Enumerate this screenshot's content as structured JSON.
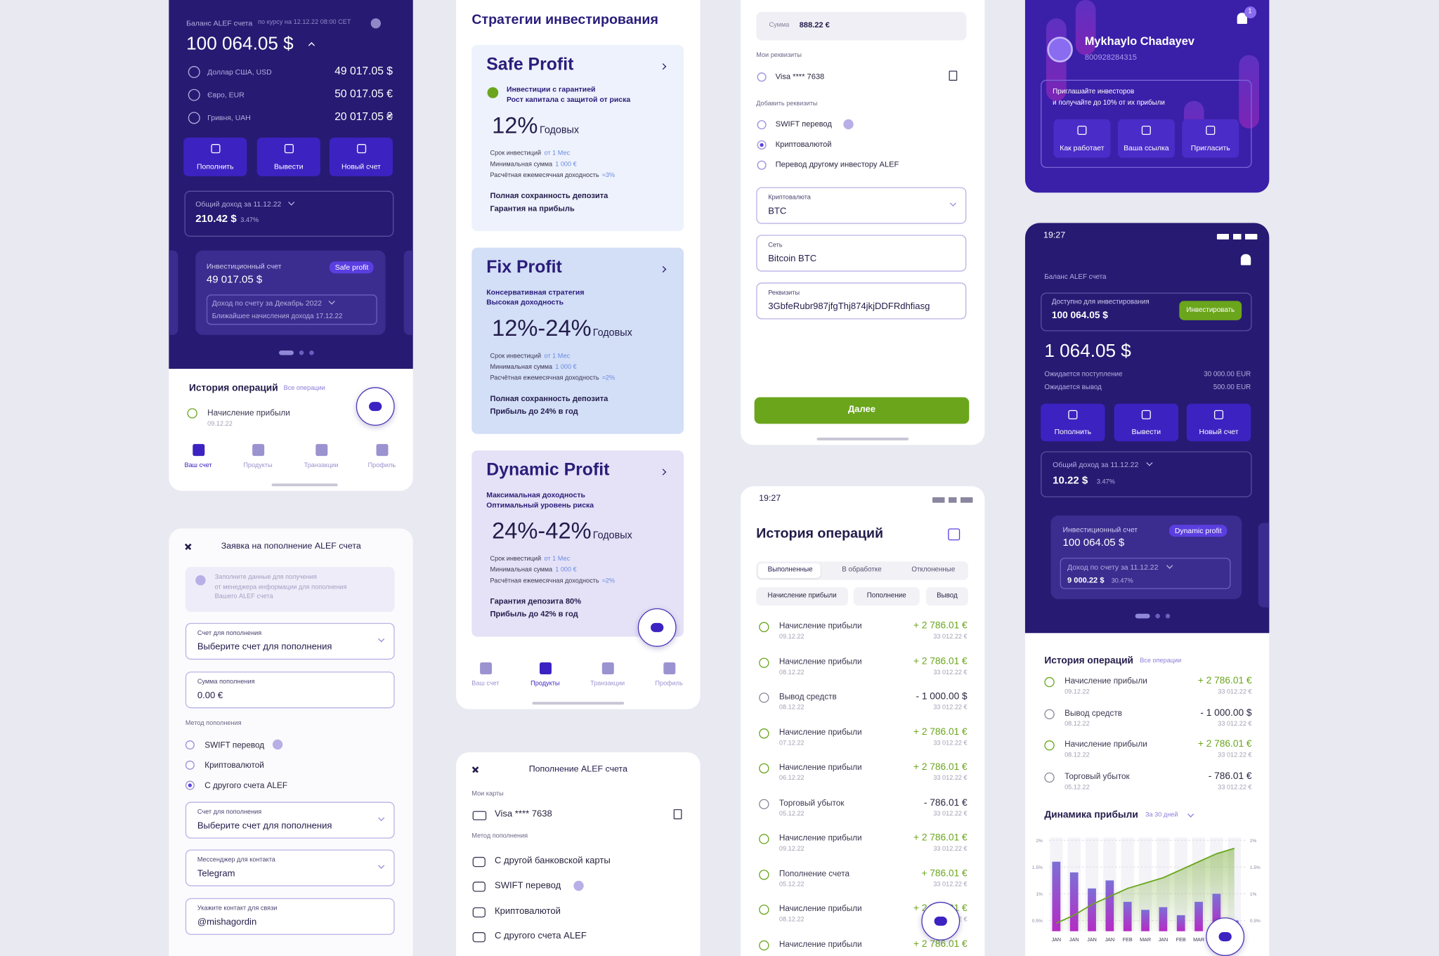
{
  "s1": {
    "balance_label": "Баланс ALEF счета",
    "rate_note": "по курсу на 12.12.22 08:00 CET",
    "total": "100 064.05 $",
    "currencies": [
      {
        "name": "Доллар США, USD",
        "amount": "49 017.05 $"
      },
      {
        "name": "Євро, EUR",
        "amount": "50 017.05 €"
      },
      {
        "name": "Гривня, UAH",
        "amount": "20 017.05 ₴"
      }
    ],
    "actions": [
      "Пополнить",
      "Вывести",
      "Новый счет"
    ],
    "income_label": "Общий доход за 11.12.22",
    "income": "210.42 $",
    "income_pct": "3.47%",
    "card": {
      "label": "Инвестиционный счет",
      "amount": "49 017.05 $",
      "badge": "Safe profit",
      "period": "Доход по счету за Декабрь 2022",
      "next": "Ближайшее начисления дохода 17.12.22"
    },
    "history_title": "История операций",
    "history_link": "Все операции",
    "operation": {
      "name": "Начисление прибыли",
      "date": "09.12.22"
    },
    "nav": [
      "Ваш счет",
      "Продукты",
      "Транзакции",
      "Профиль"
    ]
  },
  "s2": {
    "title": "Заявка на пополнение ALEF счета",
    "info": [
      "Заполните данные для получения",
      "от менеджера информации для пополнения",
      "Вашего ALEF счета"
    ],
    "fields": [
      {
        "label": "Счет для пополнения",
        "value": "Выберите счет для пополнения"
      },
      {
        "label": "Сумма пополнения",
        "value": "0.00 €"
      }
    ],
    "method_label": "Метод пополнения",
    "methods": [
      "SWIFT перевод",
      "Криптовалютой",
      "С другого счета ALEF"
    ],
    "fields2": [
      {
        "label": "Счет для пополнения",
        "value": "Выберите счет для пополнения"
      },
      {
        "label": "Мессенджер для контакта",
        "value": "Telegram"
      },
      {
        "label": "Укажите контакт для связи",
        "value": "@mishagordin"
      }
    ]
  },
  "s3": {
    "title": "Стратегии инвестирования",
    "period": "Годовых",
    "term_labels": [
      "Срок инвестиций",
      "Минимальная сумма",
      "Расчётная ежемесячная доходность"
    ],
    "strategies": [
      {
        "name": "Safe Profit",
        "desc": [
          "Инвестиции с гарантией",
          "Рост капитала с защитой от риска"
        ],
        "rate": "12%",
        "term_values": [
          "от 1 Мес",
          "1 000 €",
          "≈3%"
        ],
        "guarantee": [
          "Полная сохранность депозита",
          "Гарантия на прибыль"
        ]
      },
      {
        "name": "Fix Profit",
        "desc": [
          "Консервативная стратегия",
          "Высокая доходность"
        ],
        "rate": "12%-24%",
        "term_values": [
          "от 1 Мес",
          "1 000 €",
          "≈2%"
        ],
        "guarantee": [
          "Полная сохранность депозита",
          "Прибыль до 24% в год"
        ]
      },
      {
        "name": "Dynamic Profit",
        "desc": [
          "Максимальная доходность",
          "Оптимальный уровень риска"
        ],
        "rate": "24%-42%",
        "term_values": [
          "от 1 Мес",
          "1 000 €",
          "≈2%"
        ],
        "guarantee": [
          "Гарантия депозита 80%",
          "Прибыль до 42% в год"
        ]
      }
    ]
  },
  "s4": {
    "title": "Пополнение ALEF счета",
    "cards_label": "Мои карты",
    "card": "Visa **** 7638",
    "method_label": "Метод пополнения",
    "methods": [
      "С другой банковской карты",
      "SWIFT перевод",
      "Криптовалютой",
      "С другого счета ALEF"
    ]
  },
  "s5": {
    "amount_label": "Сумма",
    "amount": "888.22 €",
    "details_label": "Мои реквизиты",
    "card": "Visa **** 7638",
    "add_label": "Добавить реквизиты",
    "options": [
      "SWIFT перевод",
      "Криптовалютой",
      "Перевод другому инвестору ALEF"
    ],
    "fields": [
      {
        "label": "Криптовалюта",
        "value": "BTC"
      },
      {
        "label": "Сеть",
        "value": "Bitcoin BTC"
      },
      {
        "label": "Реквизиты",
        "value": "3GbfeRubr987jfgThj874jkjDDFRdhfiasg"
      }
    ],
    "button": "Далее"
  },
  "s6": {
    "time": "19:27",
    "title": "История операций",
    "tabs": [
      "Выполненные",
      "В обработке",
      "Отклоненные"
    ],
    "filters": [
      "Начисление прибыли",
      "Пополнение",
      "Вывод"
    ],
    "operations": [
      {
        "name": "Начисление прибыли",
        "date": "09.12.22",
        "amount": "+ 2 786.01 €",
        "balance": "33 012.22 €"
      },
      {
        "name": "Начисление прибыли",
        "date": "08.12.22",
        "amount": "+ 2 786.01 €",
        "balance": "33 012.22 €"
      },
      {
        "name": "Вывод средств",
        "date": "08.12.22",
        "amount": "- 1 000.00 $",
        "balance": "33 012.22 €"
      },
      {
        "name": "Начисление прибыли",
        "date": "07.12.22",
        "amount": "+ 2 786.01 €",
        "balance": "33 012.22 €"
      },
      {
        "name": "Начисление прибыли",
        "date": "06.12.22",
        "amount": "+ 2 786.01 €",
        "balance": "33 012.22 €"
      },
      {
        "name": "Торговый убыток",
        "date": "05.12.22",
        "amount": "- 786.01 €",
        "balance": "33 012.22 €"
      },
      {
        "name": "Начисление прибыли",
        "date": "09.12.22",
        "amount": "+ 2 786.01 €",
        "balance": "33 012.22 €"
      },
      {
        "name": "Пополнение счета",
        "date": "05.12.22",
        "amount": "+ 786.01 €",
        "balance": "33 012.22 €"
      },
      {
        "name": "Начисление прибыли",
        "date": "08.12.22",
        "amount": "+ 2 786.01 €",
        "balance": "33 012.22 €"
      },
      {
        "name": "Начисление прибыли",
        "amount": "+ 2 786.01 €"
      }
    ]
  },
  "s7": {
    "name": "Mykhaylo Chadayev",
    "id": "800928284315",
    "badge": "1",
    "invite": [
      "Приглашайте инвесторов",
      "и получайте до 10% от их прибыли"
    ],
    "actions": [
      "Как работает",
      "Ваша ссылка",
      "Пригласить"
    ]
  },
  "s8": {
    "time": "19:27",
    "balance_label": "Баланс ALEF счета",
    "available_label": "Доступно для инвестирования",
    "available": "100 064.05 $",
    "invest_button": "Инвестировать",
    "total": "1 064.05 $",
    "expected": [
      {
        "label": "Ожидается поступление",
        "value": "30 000.00 EUR"
      },
      {
        "label": "Ожидается вывод",
        "value": "500.00 EUR"
      }
    ],
    "income_label": "Общий доход за 11.12.22",
    "income": "10.22 $",
    "income_pct": "3.47%",
    "card": {
      "label": "Инвестиционный счет",
      "amount": "100 064.05 $",
      "badge": "Dynamic profit",
      "period": "Доход по счету за 11.12.22",
      "income": "9 000.22 $",
      "income_pct": "30.47%"
    },
    "history_title": "История операций",
    "history_link": "Все операции",
    "operations": [
      {
        "name": "Начисление прибыли",
        "date": "09.12.22",
        "amount": "+ 2 786.01 €",
        "balance": "33 012.22 €"
      },
      {
        "name": "Вывод средств",
        "date": "08.12.22",
        "amount": "- 1 000.00 $",
        "balance": "33 012.22 €"
      },
      {
        "name": "Начисление прибыли",
        "date": "08.12.22",
        "amount": "+ 2 786.01 €",
        "balance": "33 012.22 €"
      },
      {
        "name": "Торговый убыток",
        "date": "05.12.22",
        "amount": "- 786.01 €",
        "balance": "33 012.22 €"
      }
    ],
    "chart_title": "Динамика прибыли",
    "chart_period": "За 30 дней"
  },
  "profit_chart": {
    "type": "bar",
    "categories": [
      "JAN",
      "JAN",
      "JAN",
      "JAN",
      "FEB",
      "MAR",
      "JAN",
      "FEB",
      "MAR",
      "JAN",
      "JAN"
    ],
    "values": [
      1.6,
      1.4,
      1.1,
      1.25,
      0.85,
      0.7,
      0.75,
      0.6,
      0.85,
      1.0,
      0.5
    ],
    "line": [
      0.45,
      0.6,
      0.8,
      0.95,
      1.1,
      1.2,
      1.3,
      1.45,
      1.6,
      1.75,
      1.85
    ],
    "ylim": [
      0.3,
      2.05
    ],
    "yticks": [
      {
        "value": 0.5,
        "label": "0.5%"
      },
      {
        "value": 1,
        "label": "1%"
      },
      {
        "value": 1.5,
        "label": "1.5%"
      },
      {
        "value": 2,
        "label": "2%"
      }
    ],
    "bar_colors": [
      "#7d6fd6",
      "#b52bc4"
    ],
    "line_color": "#6aa51c"
  }
}
